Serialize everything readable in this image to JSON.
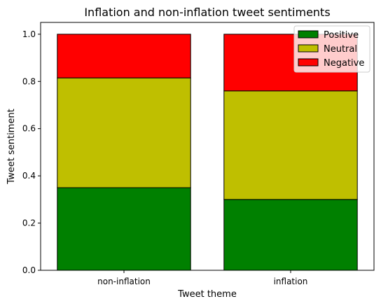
{
  "chart_data": {
    "type": "bar",
    "stacked": true,
    "title": "Inflation and non-inflation tweet sentiments",
    "xlabel": "Tweet theme",
    "ylabel": "Tweet sentiment",
    "categories": [
      "non-inflation",
      "inflation"
    ],
    "ylim": [
      0,
      1.05
    ],
    "yticks": [
      "0.0",
      "0.2",
      "0.4",
      "0.6",
      "0.8",
      "1.0"
    ],
    "ytick_values": [
      0,
      0.2,
      0.4,
      0.6,
      0.8,
      1.0
    ],
    "series": [
      {
        "name": "Positive",
        "color": "#008000",
        "values": [
          0.35,
          0.3
        ]
      },
      {
        "name": "Neutral",
        "color": "#bfbf00",
        "values": [
          0.465,
          0.46
        ]
      },
      {
        "name": "Negative",
        "color": "#ff0000",
        "values": [
          0.185,
          0.24
        ]
      }
    ],
    "legend_position": "top-right",
    "grid": false
  }
}
